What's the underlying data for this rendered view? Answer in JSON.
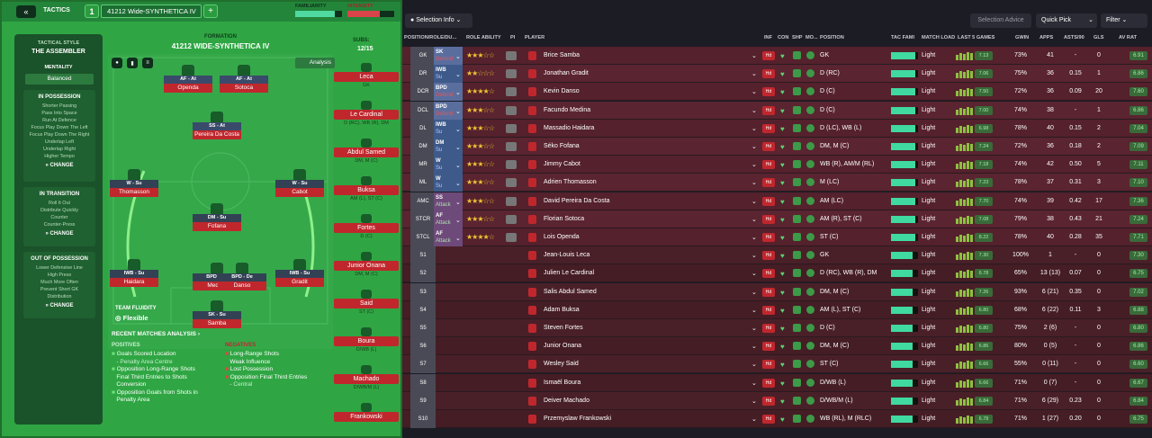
{
  "header": {
    "tab_num": "1",
    "tactic_name": "41212 Wide-SYNTHETICA IV",
    "section": "TACTICS",
    "familiarity_label": "FAMILIARITY",
    "intensity_label": "INTENSITY",
    "familiarity": 0.85,
    "intensity": 0.7
  },
  "sidebar": {
    "style_label": "TACTICAL STYLE",
    "style": "THE ASSEMBLER",
    "mentality_label": "MENTALITY",
    "mentality": "Balanced",
    "possession": {
      "title": "IN POSSESSION",
      "items": [
        "Shorter Passing",
        "Pass Into Space",
        "Run At Defence",
        "Focus Play Down The Left",
        "Focus Play Down The Right",
        "Underlap Left",
        "Underlap Right",
        "Higher Tempo"
      ],
      "change": "CHANGE"
    },
    "transition": {
      "title": "IN TRANSITION",
      "items": [
        "Roll It Out",
        "Distribute Quickly",
        "Counter",
        "Counter-Press"
      ],
      "change": "CHANGE"
    },
    "out": {
      "title": "OUT OF POSSESSION",
      "items": [
        "Lower Defensive Line",
        "High Press",
        "Much More Often",
        "Prevent Short GK",
        "Distribution"
      ],
      "change": "CHANGE"
    }
  },
  "formation": {
    "label": "FORMATION",
    "name": "41212 WIDE-SYNTHETICA IV",
    "analysis": "Analysis",
    "subs_label": "SUBS:",
    "subs": "12/15",
    "fluidity_label": "TEAM FLUIDITY",
    "fluidity": "Flexible"
  },
  "pitch": [
    {
      "role": "AF - At",
      "name": "Openda"
    },
    {
      "role": "AF - At",
      "name": "Sotoca"
    },
    {
      "role": "SS - At",
      "name": "Pereira Da Costa"
    },
    {
      "role": "W - Su",
      "name": "Thomasson"
    },
    {
      "role": "W - Su",
      "name": "Cabot"
    },
    {
      "role": "DM - Su",
      "name": "Fofana"
    },
    {
      "role": "IWB - Su",
      "name": "Haidara"
    },
    {
      "role": "BPD - De",
      "name": "Medina"
    },
    {
      "role": "BPD - De",
      "name": "Danso"
    },
    {
      "role": "IWB - Su",
      "name": "Gradit"
    },
    {
      "role": "SK - Su",
      "name": "Samba"
    }
  ],
  "subs": [
    {
      "name": "Leca",
      "pos": "GK"
    },
    {
      "name": "Le Cardinal",
      "pos": "D (RC), WB (R), DM"
    },
    {
      "name": "Abdul Samed",
      "pos": "DM, M (C)"
    },
    {
      "name": "Buksa",
      "pos": "AM (L), ST (C)"
    },
    {
      "name": "Fortes",
      "pos": "D (C)"
    },
    {
      "name": "Junior Onana",
      "pos": "DM, M (C)"
    },
    {
      "name": "Said",
      "pos": "ST (C)"
    },
    {
      "name": "Boura",
      "pos": "D/WB (L)"
    },
    {
      "name": "Machado",
      "pos": "D/WB/M (L)"
    },
    {
      "name": "Frankowski",
      "pos": ""
    }
  ],
  "analysis": {
    "title": "RECENT MATCHES ANALYSIS",
    "pos_label": "POSITIVES",
    "neg_label": "NEGATIVES",
    "positives": [
      "Goals Scored Location",
      "- Penalty Area Centre",
      "Opposition Long-Range Shots",
      "Final Third Entries to Shots",
      "Conversion",
      "Opposition Goals from Shots in",
      "Penalty Area"
    ],
    "negatives": [
      "Long-Range Shots",
      "Weak Influence",
      "Lost Possession",
      "Opposition Final Third Entries",
      "- Central"
    ]
  },
  "toolbar": {
    "selection_info": "Selection Info",
    "selection_advice": "Selection Advice",
    "quick_pick": "Quick Pick",
    "filter": "Filter"
  },
  "columns": [
    "POSITION/ROLE/DU...",
    "ROLE ABILITY",
    "PI",
    "PLAYER",
    "INF",
    "CON",
    "SHP",
    "MO...",
    "POSITION",
    "TAC FAMI",
    "MATCH LOAD",
    "LAST 5 GAMES",
    "GWIN",
    "APPS",
    "ASTS/90",
    "GLS",
    "AV RAT"
  ],
  "rows": [
    {
      "pos": "GK",
      "role": "SK",
      "duty": "Defend",
      "stars": "★★★☆☆",
      "player": "Brice Samba",
      "position": "GK",
      "load": "Light",
      "form": "7.13",
      "gwin": "73%",
      "apps": "41",
      "asts": "-",
      "gls": "0",
      "rat": "6.91"
    },
    {
      "pos": "DR",
      "role": "IWB",
      "duty": "Su",
      "stars": "★★☆☆☆",
      "player": "Jonathan Gradit",
      "position": "D (RC)",
      "load": "Light",
      "form": "7.06",
      "gwin": "75%",
      "apps": "36",
      "asts": "0.15",
      "gls": "1",
      "rat": "6.86"
    },
    {
      "pos": "DCR",
      "role": "BPD",
      "duty": "Defend",
      "stars": "★★★★☆",
      "player": "Kevin Danso",
      "position": "D (C)",
      "load": "Light",
      "form": "7.50",
      "gwin": "72%",
      "apps": "36",
      "asts": "0.09",
      "gls": "20",
      "rat": "7.60"
    },
    {
      "pos": "DCL",
      "role": "BPD",
      "duty": "Defend",
      "stars": "★★★☆☆",
      "player": "Facundo Medina",
      "position": "D (C)",
      "load": "Light",
      "form": "7.00",
      "gwin": "74%",
      "apps": "38",
      "asts": "-",
      "gls": "1",
      "rat": "6.86"
    },
    {
      "pos": "DL",
      "role": "IWB",
      "duty": "Su",
      "stars": "★★★☆☆",
      "player": "Massadio Haidara",
      "position": "D (LC), WB (L)",
      "load": "Light",
      "form": "6.98",
      "gwin": "78%",
      "apps": "40",
      "asts": "0.15",
      "gls": "2",
      "rat": "7.04"
    },
    {
      "pos": "DM",
      "role": "DM",
      "duty": "Su",
      "stars": "★★★☆☆",
      "player": "Séko Fofana",
      "position": "DM, M (C)",
      "load": "Light",
      "form": "7.24",
      "gwin": "72%",
      "apps": "36",
      "asts": "0.18",
      "gls": "2",
      "rat": "7.09"
    },
    {
      "pos": "MR",
      "role": "W",
      "duty": "Su",
      "stars": "★★★☆☆",
      "player": "Jimmy Cabot",
      "position": "WB (R), AM/M (RL)",
      "load": "Light",
      "form": "7.18",
      "gwin": "74%",
      "apps": "42",
      "asts": "0.50",
      "gls": "5",
      "rat": "7.11"
    },
    {
      "pos": "ML",
      "role": "W",
      "duty": "Su",
      "stars": "★★★☆☆",
      "player": "Adrien Thomasson",
      "position": "M (LC)",
      "load": "Light",
      "form": "7.23",
      "gwin": "78%",
      "apps": "37",
      "asts": "0.31",
      "gls": "3",
      "rat": "7.10"
    },
    {
      "pos": "AMC",
      "role": "SS",
      "duty": "Attack",
      "stars": "★★★☆☆",
      "player": "David Pereira Da Costa",
      "position": "AM (LC)",
      "load": "Light",
      "form": "7.70",
      "gwin": "74%",
      "apps": "39",
      "asts": "0.42",
      "gls": "17",
      "rat": "7.36"
    },
    {
      "pos": "STCR",
      "role": "AF",
      "duty": "Attack",
      "stars": "★★★☆☆",
      "player": "Florian Sotoca",
      "position": "AM (R), ST (C)",
      "load": "Light",
      "form": "7.08",
      "gwin": "79%",
      "apps": "38",
      "asts": "0.43",
      "gls": "21",
      "rat": "7.24"
    },
    {
      "pos": "STCL",
      "role": "AF",
      "duty": "Attack",
      "stars": "★★★★☆",
      "player": "Lois Openda",
      "position": "ST (C)",
      "load": "Light",
      "form": "8.22",
      "gwin": "78%",
      "apps": "40",
      "asts": "0.28",
      "gls": "35",
      "rat": "7.71"
    },
    {
      "pos": "S1",
      "role": "",
      "duty": "",
      "stars": "",
      "player": "Jean-Louis Leca",
      "position": "GK",
      "load": "Light",
      "form": "7.30",
      "gwin": "100%",
      "apps": "1",
      "asts": "-",
      "gls": "0",
      "rat": "7.30"
    },
    {
      "pos": "S2",
      "role": "",
      "duty": "",
      "stars": "",
      "player": "Julien Le Cardinal",
      "position": "D (RC), WB (R), DM",
      "load": "Light",
      "form": "6.78",
      "gwin": "65%",
      "apps": "13 (13)",
      "asts": "0.07",
      "gls": "0",
      "rat": "6.75"
    },
    {
      "pos": "S3",
      "role": "",
      "duty": "",
      "stars": "",
      "player": "Salis Abdul Samed",
      "position": "DM, M (C)",
      "load": "Light",
      "form": "7.26",
      "gwin": "93%",
      "apps": "6 (21)",
      "asts": "0.35",
      "gls": "0",
      "rat": "7.02"
    },
    {
      "pos": "S4",
      "role": "",
      "duty": "",
      "stars": "",
      "player": "Adam Buksa",
      "position": "AM (L), ST (C)",
      "load": "Light",
      "form": "6.80",
      "gwin": "68%",
      "apps": "6 (22)",
      "asts": "0.11",
      "gls": "3",
      "rat": "6.88"
    },
    {
      "pos": "S5",
      "role": "",
      "duty": "",
      "stars": "",
      "player": "Steven Fortes",
      "position": "D (C)",
      "load": "Light",
      "form": "6.80",
      "gwin": "75%",
      "apps": "2 (6)",
      "asts": "-",
      "gls": "0",
      "rat": "6.80"
    },
    {
      "pos": "S6",
      "role": "",
      "duty": "",
      "stars": "",
      "player": "Junior Onana",
      "position": "DM, M (C)",
      "load": "Light",
      "form": "6.86",
      "gwin": "80%",
      "apps": "0 (5)",
      "asts": "-",
      "gls": "0",
      "rat": "6.86"
    },
    {
      "pos": "S7",
      "role": "",
      "duty": "",
      "stars": "",
      "player": "Wesley Said",
      "position": "ST (C)",
      "load": "Light",
      "form": "6.66",
      "gwin": "55%",
      "apps": "0 (11)",
      "asts": "-",
      "gls": "0",
      "rat": "6.60"
    },
    {
      "pos": "S8",
      "role": "",
      "duty": "",
      "stars": "",
      "player": "Ismaël Boura",
      "position": "D/WB (L)",
      "load": "Light",
      "form": "6.66",
      "gwin": "71%",
      "apps": "0 (7)",
      "asts": "-",
      "gls": "0",
      "rat": "6.67"
    },
    {
      "pos": "S9",
      "role": "",
      "duty": "",
      "stars": "",
      "player": "Deiver Machado",
      "position": "D/WB/M (L)",
      "load": "Light",
      "form": "6.84",
      "gwin": "71%",
      "apps": "6 (29)",
      "asts": "0.23",
      "gls": "0",
      "rat": "6.84"
    },
    {
      "pos": "S10",
      "role": "",
      "duty": "",
      "stars": "",
      "player": "Przemyslaw Frankowski",
      "position": "WB (RL), M (RLC)",
      "load": "Light",
      "form": "6.78",
      "gwin": "71%",
      "apps": "1 (27)",
      "asts": "0.20",
      "gls": "0",
      "rat": "6.75"
    }
  ]
}
